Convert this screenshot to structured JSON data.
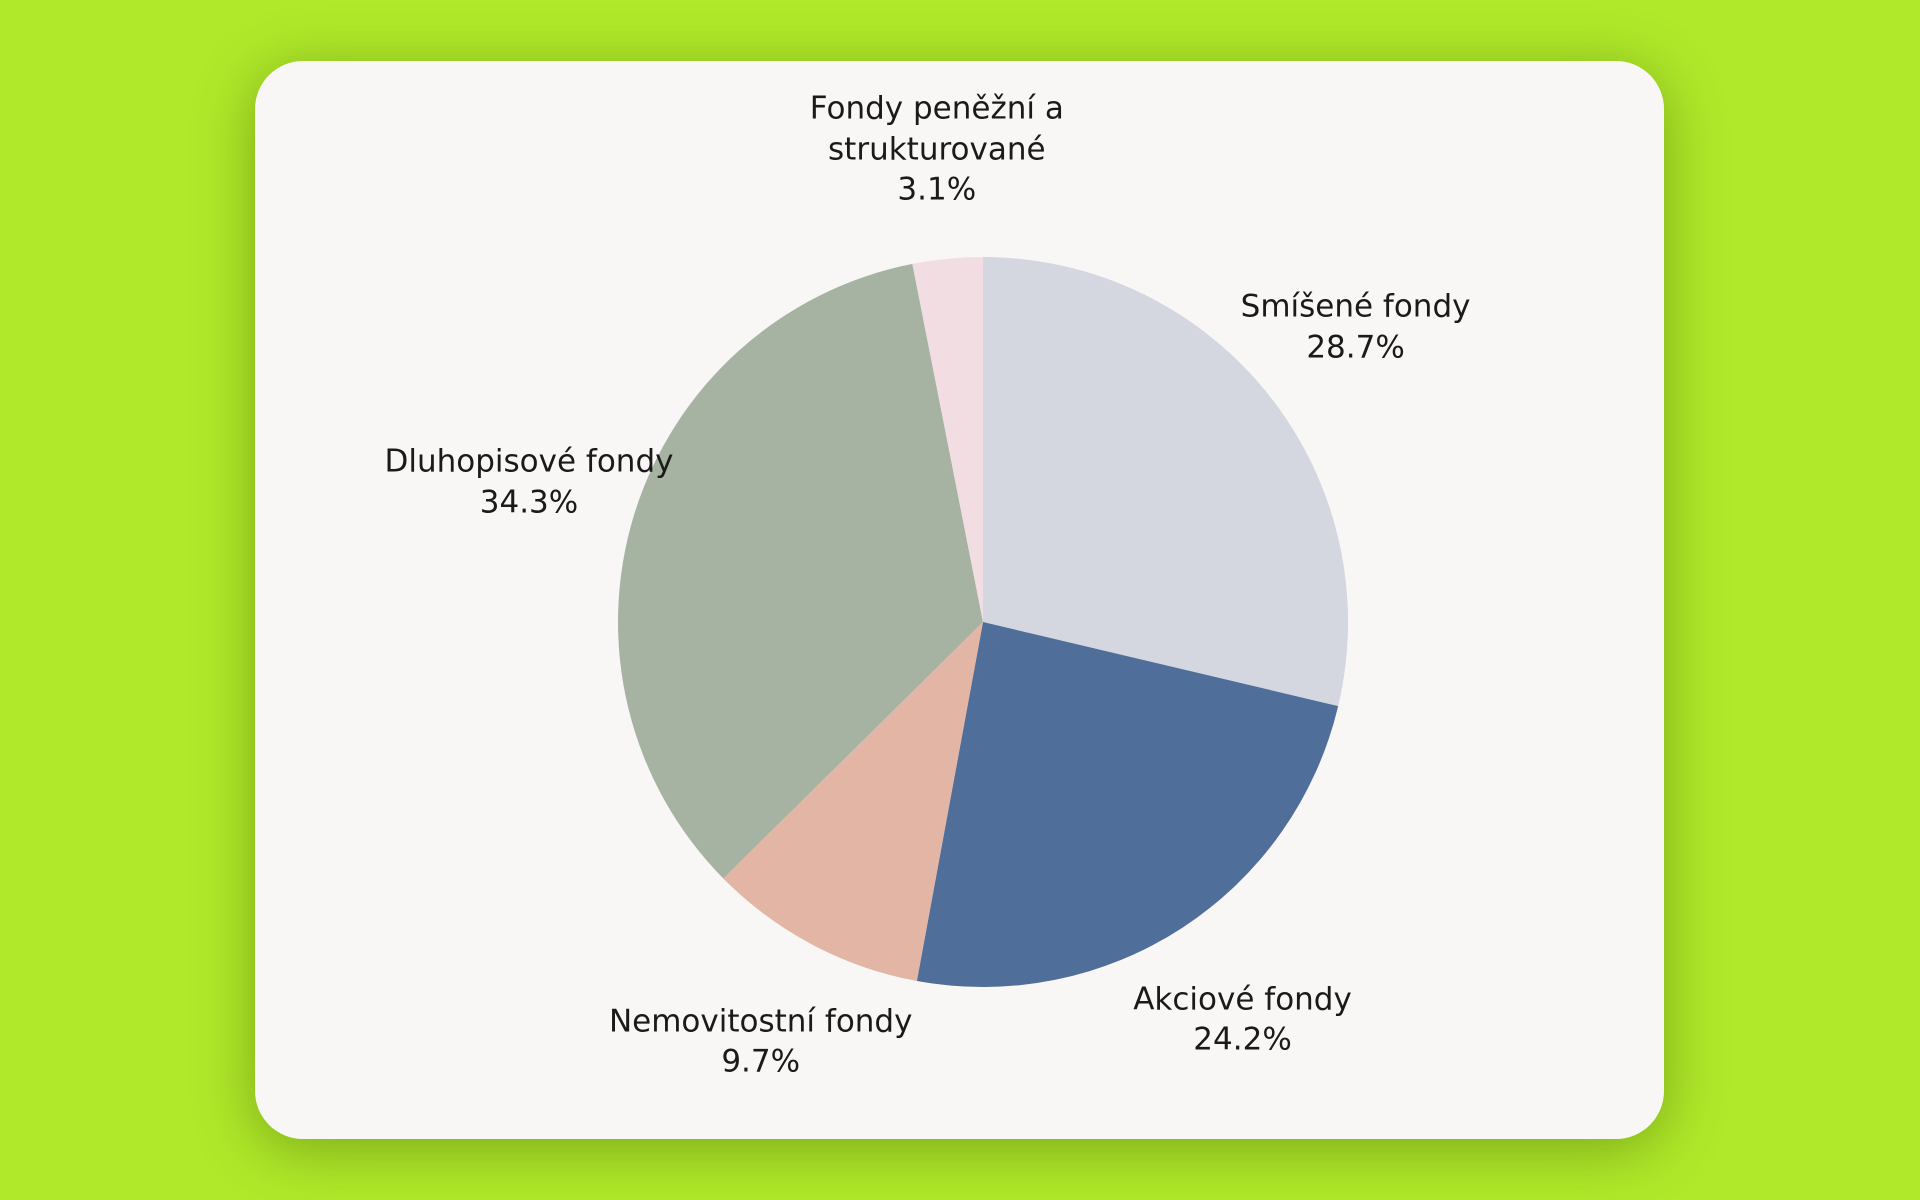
{
  "chart_data": {
    "type": "pie",
    "categories": [
      "Smíšené fondy",
      "Akciové fondy",
      "Nemovitostní fondy",
      "Dluhopisové fondy",
      "Fondy peněžní a strukturované"
    ],
    "values": [
      28.7,
      24.2,
      9.7,
      34.3,
      3.1
    ],
    "value_labels": [
      "28.7%",
      "24.2%",
      "9.7%",
      "34.3%",
      "3.1%"
    ],
    "colors": [
      "#d4d7e0",
      "#506e9a",
      "#e2b5a5",
      "#a7b3a2",
      "#f2dde3"
    ]
  }
}
